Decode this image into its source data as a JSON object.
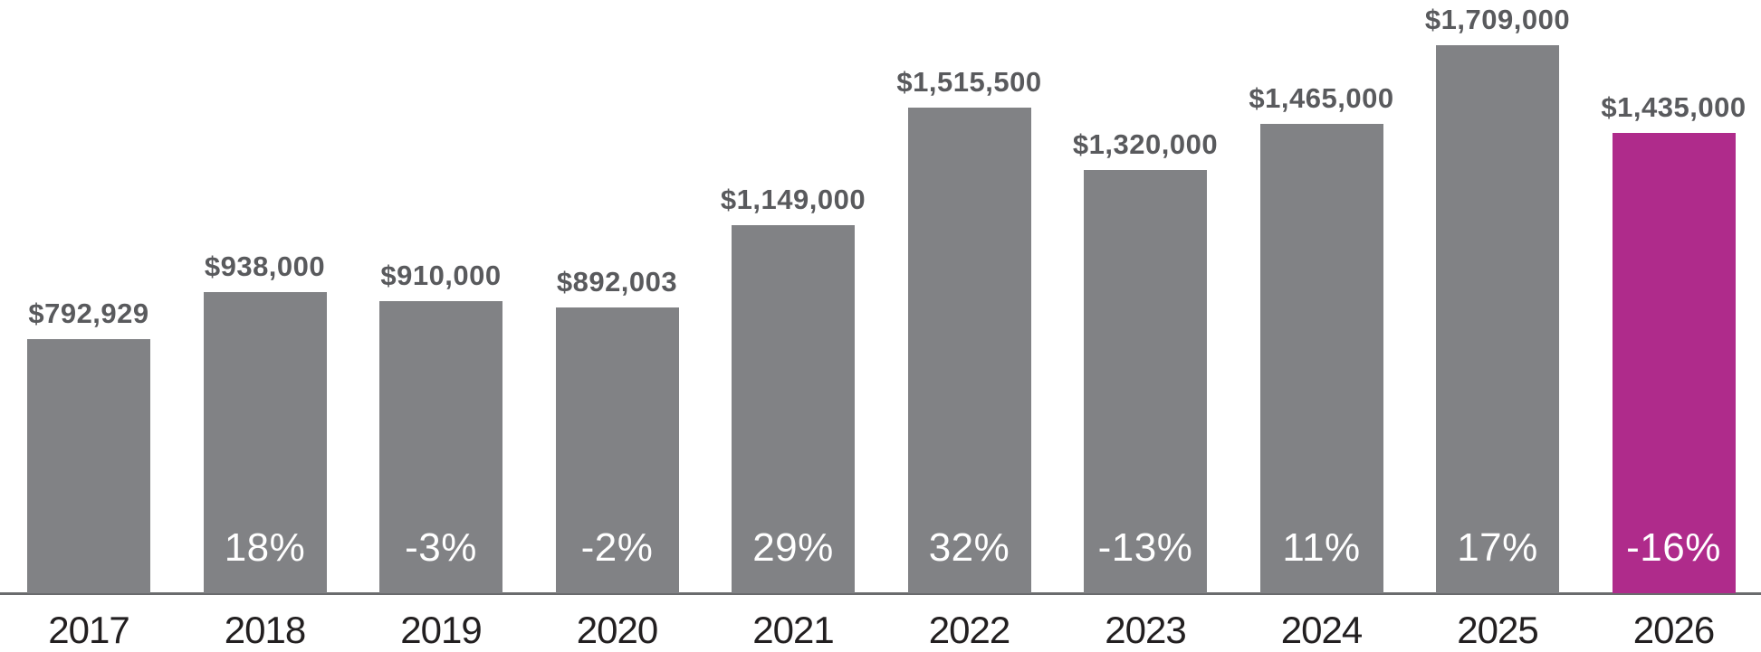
{
  "chart_data": {
    "type": "bar",
    "categories": [
      "2017",
      "2018",
      "2019",
      "2020",
      "2021",
      "2022",
      "2023",
      "2024",
      "2025",
      "2026"
    ],
    "values": [
      792929,
      938000,
      910000,
      892003,
      1149000,
      1515500,
      1320000,
      1465000,
      1709000,
      1435000
    ],
    "value_labels": [
      "$792,929",
      "$938,000",
      "$910,000",
      "$892,003",
      "$1,149,000",
      "$1,515,500",
      "$1,320,000",
      "$1,465,000",
      "$1,709,000",
      "$1,435,000"
    ],
    "pct_labels": [
      "",
      "18%",
      "-3%",
      "-2%",
      "29%",
      "32%",
      "-13%",
      "11%",
      "17%",
      "-16%"
    ],
    "title": "",
    "xlabel": "",
    "ylabel": "",
    "ylim": [
      0,
      1750000
    ],
    "grid": false,
    "legend": false,
    "highlight_index": 9,
    "colors": {
      "bar_default": "#818285",
      "bar_highlight": "#AF2B8B",
      "value_label": "#595A5D",
      "pct_label": "#FFFFFF",
      "year_label": "#221F20",
      "axis_line": "#6A6B6D"
    }
  }
}
